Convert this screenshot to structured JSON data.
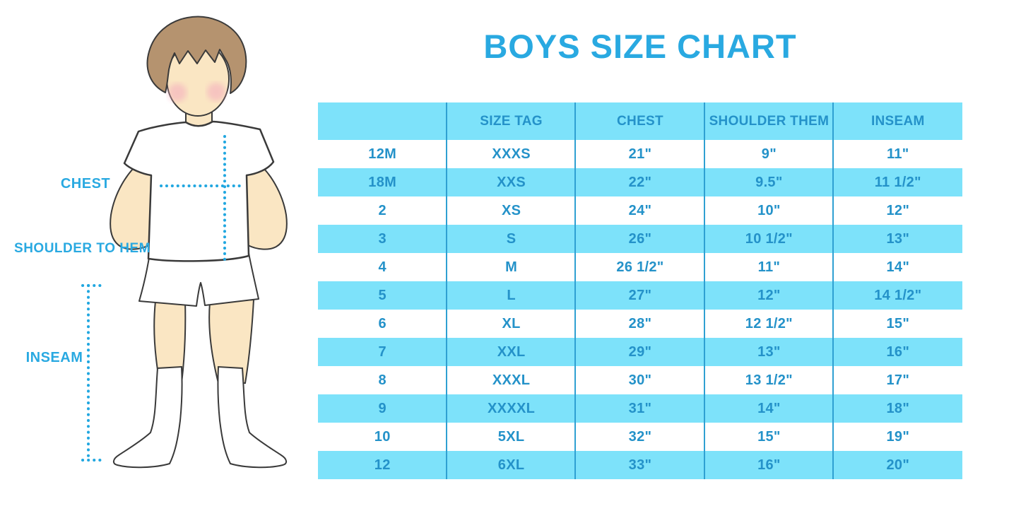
{
  "title": "BOYS SIZE CHART",
  "colors": {
    "accent_blue": "#29A9E1",
    "table_row_blue": "#7DE2FA",
    "table_text_blue": "#2492C9",
    "table_divider_blue": "#2FA0D2",
    "dotted_line_blue": "#21A7E0",
    "skin": "#FAE6C3",
    "hair_brown": "#B5936F",
    "cheek_pink": "#F4AFBE"
  },
  "figure": {
    "description": "boy-measurement-illustration",
    "labels": {
      "chest": "CHEST",
      "shoulder_to_hem": "SHOULDER TO HEM",
      "inseam": "INSEAM"
    }
  },
  "chart_data": {
    "type": "table",
    "title": "BOYS SIZE CHART",
    "columns": [
      "",
      "SIZE TAG",
      "CHEST",
      "SHOULDER THEM",
      "INSEAM"
    ],
    "rows": [
      [
        "12M",
        "XXXS",
        "21\"",
        "9\"",
        "11\""
      ],
      [
        "18M",
        "XXS",
        "22\"",
        "9.5\"",
        "11 1/2\""
      ],
      [
        "2",
        "XS",
        "24\"",
        "10\"",
        "12\""
      ],
      [
        "3",
        "S",
        "26\"",
        "10 1/2\"",
        "13\""
      ],
      [
        "4",
        "M",
        "26 1/2\"",
        "11\"",
        "14\""
      ],
      [
        "5",
        "L",
        "27\"",
        "12\"",
        "14 1/2\""
      ],
      [
        "6",
        "XL",
        "28\"",
        "12 1/2\"",
        "15\""
      ],
      [
        "7",
        "XXL",
        "29\"",
        "13\"",
        "16\""
      ],
      [
        "8",
        "XXXL",
        "30\"",
        "13 1/2\"",
        "17\""
      ],
      [
        "9",
        "XXXXL",
        "31\"",
        "14\"",
        "18\""
      ],
      [
        "10",
        "5XL",
        "32\"",
        "15\"",
        "19\""
      ],
      [
        "12",
        "6XL",
        "33\"",
        "16\"",
        "20\""
      ]
    ],
    "layout": {
      "striping": "alternating white and light blue rows, header light blue",
      "grid": "vertical dividers only"
    }
  }
}
